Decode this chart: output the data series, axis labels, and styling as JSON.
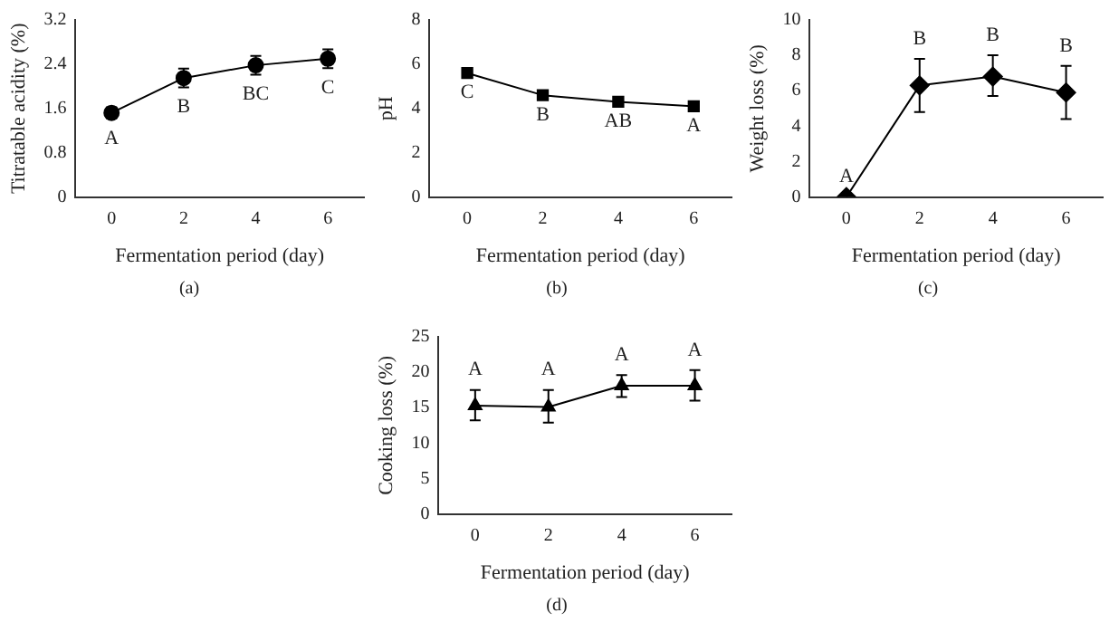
{
  "chart_data": [
    {
      "type": "line",
      "xlabel": "Fermentation period (day)",
      "ylabel": "Titratable acidity (%)",
      "categories": [
        "0",
        "2",
        "4",
        "6"
      ],
      "marker": "circle",
      "line_style": "solid",
      "grid": false,
      "legend": false,
      "series": [
        {
          "color": "#000000",
          "values": [
            1.52,
            2.15,
            2.38,
            2.5
          ],
          "errors": [
            0.1,
            0.17,
            0.17,
            0.17
          ]
        }
      ],
      "ylim": [
        0,
        3.2
      ],
      "yticks": [
        0,
        0.8,
        1.6,
        2.4,
        3.2
      ],
      "annotations": [
        {
          "text": "A",
          "x": "0",
          "y": 1.42
        },
        {
          "text": "B",
          "x": "2",
          "y": 1.98
        },
        {
          "text": "BC",
          "x": "4",
          "y": 2.21
        },
        {
          "text": "C",
          "x": "6",
          "y": 2.33
        },
        "(a)"
      ]
    },
    {
      "type": "line",
      "xlabel": "Fermentation period (day)",
      "ylabel": "pH",
      "categories": [
        "0",
        "2",
        "4",
        "6"
      ],
      "marker": "square",
      "line_style": "solid",
      "grid": false,
      "legend": false,
      "series": [
        {
          "color": "#000000",
          "values": [
            5.6,
            4.6,
            4.3,
            4.1
          ]
        }
      ],
      "ylim": [
        0,
        8
      ],
      "yticks": [
        0,
        2,
        4,
        6,
        8
      ],
      "annotations": [
        {
          "text": "C",
          "x": "0",
          "y": 5.6
        },
        {
          "text": "B",
          "x": "2",
          "y": 4.6
        },
        {
          "text": "AB",
          "x": "4",
          "y": 4.3
        },
        {
          "text": "A",
          "x": "6",
          "y": 4.1
        },
        "(b)"
      ]
    },
    {
      "type": "line",
      "xlabel": "Fermentation period (day)",
      "ylabel": "Weight loss (%)",
      "categories": [
        "0",
        "2",
        "4",
        "6"
      ],
      "marker": "diamond",
      "line_style": "solid",
      "grid": false,
      "legend": false,
      "series": [
        {
          "color": "#000000",
          "values": [
            0,
            6.3,
            6.8,
            5.9
          ],
          "errors": [
            null,
            [
              4.8,
              7.8
            ],
            [
              5.7,
              8.0
            ],
            [
              4.4,
              7.4
            ]
          ]
        }
      ],
      "ylim": [
        0,
        10
      ],
      "yticks": [
        0,
        2,
        4,
        6,
        8,
        10
      ],
      "annotations": [
        {
          "text": "A",
          "x": "0",
          "y": 0
        },
        {
          "text": "B",
          "x": "2",
          "y": 7.8
        },
        {
          "text": "B",
          "x": "4",
          "y": 8.0
        },
        {
          "text": "B",
          "x": "6",
          "y": 7.4
        },
        "(c)"
      ]
    },
    {
      "type": "line",
      "xlabel": "Fermentation period (day)",
      "ylabel": "Cooking loss (%)",
      "categories": [
        "0",
        "2",
        "4",
        "6"
      ],
      "marker": "triangle",
      "line_style": "solid",
      "grid": false,
      "legend": false,
      "series": [
        {
          "color": "#000000",
          "values": [
            15.3,
            15.1,
            18.1,
            18.1
          ],
          "errors": [
            [
              13.2,
              17.5
            ],
            [
              12.9,
              17.5
            ],
            [
              16.5,
              19.6
            ],
            [
              16.0,
              20.3
            ]
          ]
        }
      ],
      "ylim": [
        0,
        25
      ],
      "yticks": [
        0,
        5,
        10,
        15,
        20,
        25
      ],
      "annotations": [
        {
          "text": "A",
          "x": "0",
          "y": 17.5
        },
        {
          "text": "A",
          "x": "2",
          "y": 17.5
        },
        {
          "text": "A",
          "x": "4",
          "y": 19.6
        },
        {
          "text": "A",
          "x": "6",
          "y": 20.3
        },
        "(d)"
      ]
    }
  ]
}
